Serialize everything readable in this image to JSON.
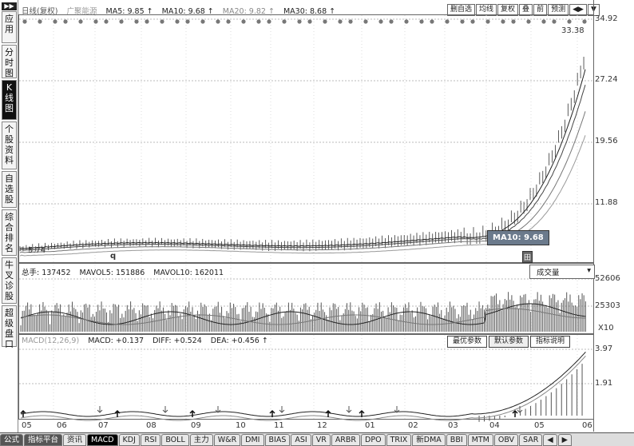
{
  "sidebar": {
    "top": "▶▶",
    "items": [
      {
        "label": "应用",
        "active": false
      },
      {
        "label": "分时图",
        "active": false
      },
      {
        "label": "K线图",
        "active": true
      },
      {
        "label": "个股资料",
        "active": false
      },
      {
        "label": "自选股",
        "active": false
      },
      {
        "label": "综合排名",
        "active": false
      },
      {
        "label": "牛叉诊股",
        "active": false
      },
      {
        "label": "超级盘口",
        "active": false
      }
    ]
  },
  "main": {
    "period": "日线(复权)",
    "stock": "广聚能源",
    "ma": [
      {
        "label": "MA5: 9.85 ↑",
        "color": "#333333"
      },
      {
        "label": "MA10: 9.68 ↑",
        "color": "#333333"
      },
      {
        "label": "MA20: 9.82 ↑",
        "color": "#888888"
      },
      {
        "label": "MA30: 8.68 ↑",
        "color": "#333333"
      }
    ],
    "toolbar": [
      "删自选",
      "均线",
      "复权",
      "叠",
      "前",
      "预测",
      "◀▶",
      "▼"
    ],
    "y_labels": [
      "34.92",
      "27.24",
      "19.56",
      "11.88"
    ],
    "high_label": "33.38",
    "low_label": "5.74",
    "q_marker": "q",
    "tooltip": "MA10: 9.68",
    "cursor_box": "田"
  },
  "volume": {
    "legend": [
      "总手: 137452",
      "MAVOL5: 151886",
      "MAVOL10: 162011"
    ],
    "select": "成交量",
    "y_labels": [
      "52606",
      "25303",
      "X10"
    ]
  },
  "macd": {
    "legend": [
      "MACD(12,26,9)",
      "MACD: +0.137",
      "DIFF: +0.524",
      "DEA: +0.456 ↑"
    ],
    "buttons": [
      "最优参数",
      "默认参数",
      "指标说明"
    ],
    "y_labels": [
      "3.97",
      "1.91"
    ]
  },
  "x_axis": [
    "05",
    "06",
    "07",
    "08",
    "09",
    "10",
    "11",
    "12",
    "01",
    "02",
    "03",
    "04",
    "05",
    "06"
  ],
  "bottom_tabs": [
    {
      "label": "公式",
      "style": "dark"
    },
    {
      "label": "指标平台",
      "style": "dark"
    },
    {
      "label": "资讯",
      "style": "normal"
    },
    {
      "label": "MACD",
      "style": "active"
    },
    {
      "label": "KDJ",
      "style": "normal"
    },
    {
      "label": "RSI",
      "style": "normal"
    },
    {
      "label": "BOLL",
      "style": "normal"
    },
    {
      "label": "主力",
      "style": "normal"
    },
    {
      "label": "W&R",
      "style": "normal"
    },
    {
      "label": "DMI",
      "style": "normal"
    },
    {
      "label": "BIAS",
      "style": "normal"
    },
    {
      "label": "ASI",
      "style": "normal"
    },
    {
      "label": "VR",
      "style": "normal"
    },
    {
      "label": "ARBR",
      "style": "normal"
    },
    {
      "label": "DPO",
      "style": "normal"
    },
    {
      "label": "TRIX",
      "style": "normal"
    },
    {
      "label": "新DMA",
      "style": "normal"
    },
    {
      "label": "BBI",
      "style": "normal"
    },
    {
      "label": "MTM",
      "style": "normal"
    },
    {
      "label": "OBV",
      "style": "normal"
    },
    {
      "label": "SAR",
      "style": "normal"
    },
    {
      "label": "◀",
      "style": "normal"
    },
    {
      "label": "▶",
      "style": "normal"
    }
  ]
}
